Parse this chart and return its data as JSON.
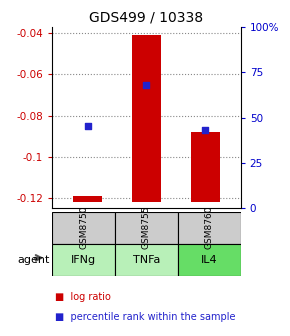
{
  "title": "GDS499 / 10338",
  "categories": [
    "IFNg",
    "TNFa",
    "IL4"
  ],
  "gsm_labels": [
    "GSM8750",
    "GSM8755",
    "GSM8760"
  ],
  "bar_tops": [
    -0.119,
    -0.041,
    -0.088
  ],
  "bar_bottom": -0.122,
  "bar_color": "#cc0000",
  "dot_values": [
    -0.085,
    -0.065,
    -0.087
  ],
  "dot_color": "#2222cc",
  "ylim_left": [
    -0.125,
    -0.037
  ],
  "yticks_left": [
    -0.04,
    -0.06,
    -0.08,
    -0.1,
    -0.12
  ],
  "ytick_labels_left": [
    "-0.04",
    "-0.06",
    "-0.08",
    "-0.1",
    "-0.12"
  ],
  "ylim_right": [
    0,
    100
  ],
  "yticks_right": [
    0,
    25,
    50,
    75,
    100
  ],
  "ytick_labels_right": [
    "0",
    "25",
    "50",
    "75",
    "100%"
  ],
  "legend_items": [
    "log ratio",
    "percentile rank within the sample"
  ],
  "legend_colors": [
    "#cc0000",
    "#2222cc"
  ],
  "gsm_bg": "#cccccc",
  "agent_bg": "#90ee90",
  "figsize": [
    2.9,
    3.36
  ],
  "dpi": 100
}
